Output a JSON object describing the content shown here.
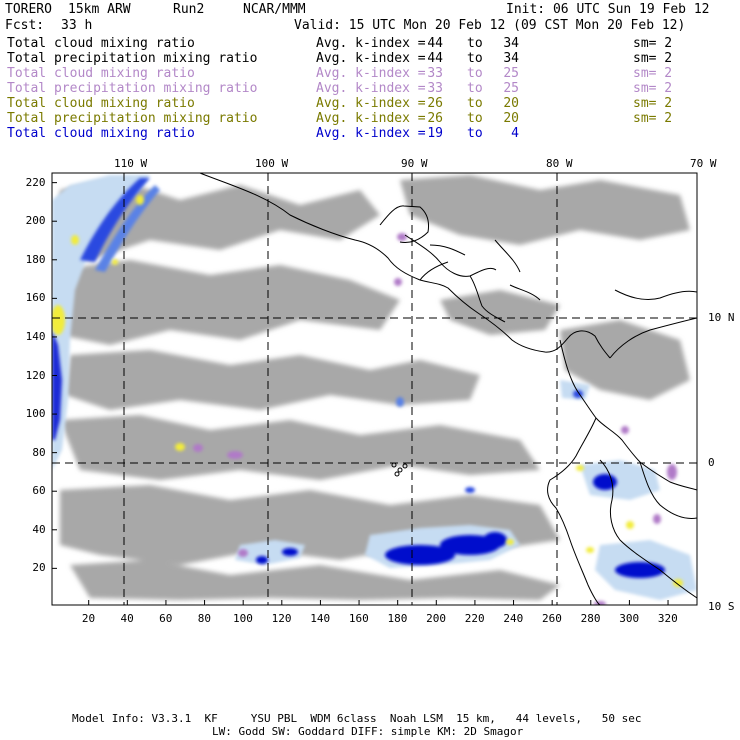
{
  "header": {
    "model": "TORERO",
    "resolution": "15km ARW",
    "run": "Run2",
    "org": "NCAR/MMM",
    "init": "Init: 06 UTC Sun 19 Feb 12",
    "fcst_label": "Fcst:",
    "fcst_value": "33 h",
    "valid": "Valid: 15 UTC Mon 20 Feb 12 (09 CST Mon 20 Feb 12)"
  },
  "legend": [
    {
      "name": "Total cloud mixing ratio",
      "avg": "Avg. k-index =",
      "lo": "44",
      "to": "to",
      "hi": "34",
      "sm": "sm= 2",
      "color": "#000000"
    },
    {
      "name": "Total precipitation mixing ratio",
      "avg": "Avg. k-index =",
      "lo": "44",
      "to": "to",
      "hi": "34",
      "sm": "sm= 2",
      "color": "#000000"
    },
    {
      "name": "Total cloud mixing ratio",
      "avg": "Avg. k-index =",
      "lo": "33",
      "to": "to",
      "hi": "25",
      "sm": "sm= 2",
      "color": "#b388c8"
    },
    {
      "name": "Total precipitation mixing ratio",
      "avg": "Avg. k-index =",
      "lo": "33",
      "to": "to",
      "hi": "25",
      "sm": "sm= 2",
      "color": "#b388c8"
    },
    {
      "name": "Total cloud mixing ratio",
      "avg": "Avg. k-index =",
      "lo": "26",
      "to": "to",
      "hi": "20",
      "sm": "sm= 2",
      "color": "#7a7a00"
    },
    {
      "name": "Total precipitation mixing ratio",
      "avg": "Avg. k-index =",
      "lo": "26",
      "to": "to",
      "hi": "20",
      "sm": "sm= 2",
      "color": "#7a7a00"
    },
    {
      "name": "Total cloud mixing ratio",
      "avg": "Avg. k-index =",
      "lo": "19",
      "to": "to",
      "hi": "4",
      "sm": "",
      "color": "#0000cc"
    }
  ],
  "map": {
    "lon_labels": [
      "110 W",
      "100 W",
      "90 W",
      "80 W",
      "70 W"
    ],
    "lat_labels": [
      "10 N",
      "0",
      "10 S"
    ],
    "x_ticks": [
      "20",
      "40",
      "60",
      "80",
      "100",
      "120",
      "140",
      "160",
      "180",
      "200",
      "220",
      "240",
      "260",
      "280",
      "300",
      "320"
    ],
    "y_ticks": [
      "220",
      "200",
      "180",
      "160",
      "140",
      "120",
      "100",
      "80",
      "60",
      "40",
      "20"
    ],
    "colors": {
      "cloud_gray": "#a8a8a8",
      "light_blue": "#c6dcf2",
      "mid_blue": "#5a82e6",
      "deep_blue": "#0000cc",
      "yellow": "#f2ec3a",
      "purple": "#b07ac8",
      "coast": "#000000",
      "grid": "#000000"
    }
  },
  "footer": {
    "line1": "Model Info: V3.3.1  KF     YSU PBL  WDM 6class  Noah LSM  15 km,   44 levels,   50 sec",
    "line2": "LW: Godd SW: Goddard DIFF: simple KM: 2D Smagor"
  }
}
